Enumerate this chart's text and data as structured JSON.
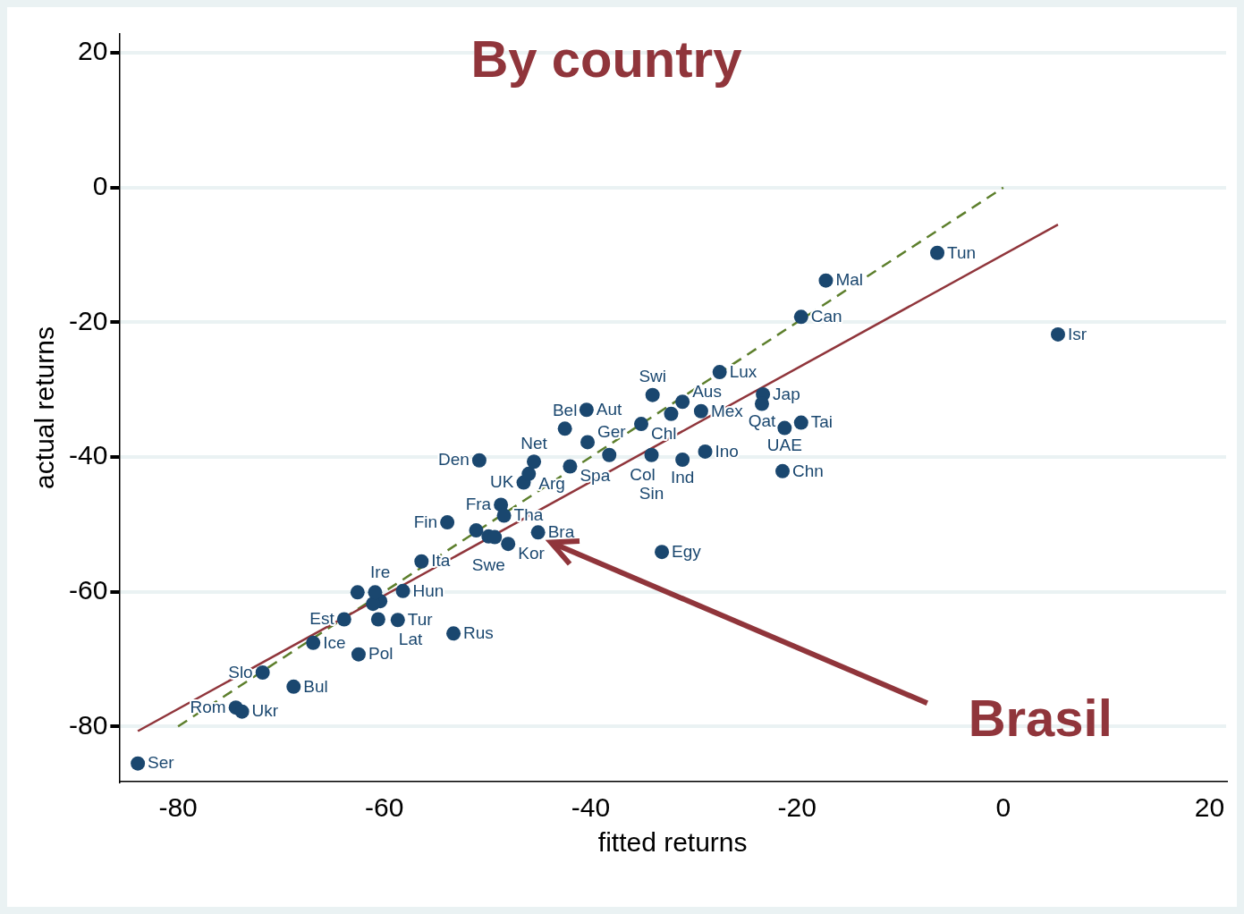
{
  "chart_data": {
    "type": "scatter",
    "title": "By country",
    "xlabel": "fitted returns",
    "ylabel": "actual returns",
    "xlim": [
      -85.7,
      21.6
    ],
    "ylim": [
      -88.2,
      22.8
    ],
    "xticks": [
      -80,
      -60,
      -40,
      -20,
      0,
      20
    ],
    "yticks": [
      -80,
      -60,
      -40,
      -20,
      0,
      20
    ],
    "grid": "y",
    "marker": "circle",
    "series": [
      {
        "color": "#1a476f",
        "x": [
          -83.9,
          -74.4,
          -73.8,
          -71.8,
          -68.8,
          -66.9,
          -62.5,
          -63.9,
          -60.6,
          -58.7,
          -58.2,
          -60.4,
          -61.1,
          -62.6,
          -60.9,
          -56.4,
          -53.3,
          -53.9,
          -51.1,
          -49.9,
          -49.3,
          -48.0,
          -45.1,
          -48.7,
          -48.4,
          -46.5,
          -46.0,
          -45.5,
          -50.8,
          -42.0,
          -42.5,
          -40.4,
          -40.3,
          -38.2,
          -35.1,
          -34.0,
          -34.1,
          -31.1,
          -28.9,
          -31.1,
          -32.2,
          -29.3,
          -27.5,
          -23.3,
          -23.4,
          -21.2,
          -19.6,
          -21.4,
          -33.1,
          -19.6,
          -17.2,
          -6.4,
          5.3
        ],
        "values": [
          -85.5,
          -77.2,
          -77.8,
          -72.0,
          -74.1,
          -67.6,
          -69.3,
          -64.1,
          -64.1,
          -64.2,
          -59.9,
          -61.4,
          -61.8,
          -60.1,
          -60.1,
          -55.5,
          -66.2,
          -49.7,
          -50.9,
          -51.8,
          -51.9,
          -52.9,
          -51.2,
          -47.1,
          -48.7,
          -43.8,
          -42.5,
          -40.7,
          -40.5,
          -41.4,
          -35.8,
          -33.0,
          -37.8,
          -39.7,
          -35.1,
          -30.8,
          -39.7,
          -40.4,
          -39.2,
          -31.8,
          -33.6,
          -33.2,
          -27.4,
          -30.7,
          -32.1,
          -35.7,
          -34.9,
          -42.1,
          -54.1,
          -19.2,
          -13.8,
          -9.7,
          -21.8
        ]
      },
      {
        "type": "line",
        "color": "#90353b",
        "marker": "none",
        "line_style": "solid",
        "x": [
          -83.9,
          5.3
        ],
        "values": [
          -80.7,
          -5.5
        ]
      },
      {
        "type": "line",
        "color": "#5d7f2c",
        "marker": "none",
        "line_style": "dashed",
        "x": [
          -80,
          0
        ],
        "values": [
          -80,
          0
        ]
      }
    ],
    "annotations": [
      {
        "text": "Ser",
        "x": -83.9,
        "y": -85.5
      },
      {
        "text": "Rom",
        "x": -74.4,
        "y": -77.2
      },
      {
        "text": "Ukr",
        "x": -73.8,
        "y": -77.8
      },
      {
        "text": "Slo",
        "x": -71.8,
        "y": -72.0
      },
      {
        "text": "Bul",
        "x": -68.8,
        "y": -74.1
      },
      {
        "text": "Ice",
        "x": -66.9,
        "y": -67.6
      },
      {
        "text": "Pol",
        "x": -62.5,
        "y": -69.3
      },
      {
        "text": "Est",
        "x": -63.9,
        "y": -64.1
      },
      {
        "text": "Lat",
        "x": -60.6,
        "y": -64.1
      },
      {
        "text": "Tur",
        "x": -58.7,
        "y": -64.2
      },
      {
        "text": "Hun",
        "x": -58.2,
        "y": -59.9
      },
      {
        "text": "Ire",
        "x": -60.4,
        "y": -61.4
      },
      {
        "text": "Ita",
        "x": -56.4,
        "y": -55.5
      },
      {
        "text": "Rus",
        "x": -53.3,
        "y": -66.2
      },
      {
        "text": "Fin",
        "x": -53.9,
        "y": -49.7
      },
      {
        "text": "Swe",
        "x": -49.9,
        "y": -51.8
      },
      {
        "text": "Kor",
        "x": -48.0,
        "y": -52.9
      },
      {
        "text": "Bra",
        "x": -45.1,
        "y": -51.2
      },
      {
        "text": "Fra",
        "x": -48.7,
        "y": -47.1
      },
      {
        "text": "Tha",
        "x": -48.4,
        "y": -48.7
      },
      {
        "text": "UK",
        "x": -46.5,
        "y": -43.8
      },
      {
        "text": "Arg",
        "x": -46.0,
        "y": -42.5
      },
      {
        "text": "Net",
        "x": -45.5,
        "y": -40.7
      },
      {
        "text": "Den",
        "x": -50.8,
        "y": -40.5
      },
      {
        "text": "Spa",
        "x": -42.0,
        "y": -41.4
      },
      {
        "text": "Bel",
        "x": -42.5,
        "y": -35.8
      },
      {
        "text": "Aut",
        "x": -40.4,
        "y": -33.0
      },
      {
        "text": "Ger",
        "x": -40.3,
        "y": -37.8
      },
      {
        "text": "Col",
        "x": -38.2,
        "y": -39.7
      },
      {
        "text": "Chl",
        "x": -35.1,
        "y": -35.1
      },
      {
        "text": "Swi",
        "x": -34.0,
        "y": -30.8
      },
      {
        "text": "Sin",
        "x": -34.1,
        "y": -39.7
      },
      {
        "text": "Ind",
        "x": -31.1,
        "y": -40.4
      },
      {
        "text": "Ino",
        "x": -28.9,
        "y": -39.2
      },
      {
        "text": "Aus",
        "x": -31.1,
        "y": -31.8
      },
      {
        "text": "Mex",
        "x": -29.3,
        "y": -33.2
      },
      {
        "text": "Lux",
        "x": -27.5,
        "y": -27.4
      },
      {
        "text": "Jap",
        "x": -23.3,
        "y": -30.7
      },
      {
        "text": "Qat",
        "x": -23.4,
        "y": -32.1
      },
      {
        "text": "UAE",
        "x": -21.2,
        "y": -35.7
      },
      {
        "text": "Tai",
        "x": -19.6,
        "y": -34.9
      },
      {
        "text": "Chn",
        "x": -21.4,
        "y": -42.1
      },
      {
        "text": "Egy",
        "x": -33.1,
        "y": -54.1
      },
      {
        "text": "Can",
        "x": -19.6,
        "y": -19.2
      },
      {
        "text": "Mal",
        "x": -17.2,
        "y": -13.8
      },
      {
        "text": "Tun",
        "x": -6.4,
        "y": -9.7
      },
      {
        "text": "Isr",
        "x": 5.3,
        "y": -21.8
      },
      "Brasil"
    ]
  }
}
